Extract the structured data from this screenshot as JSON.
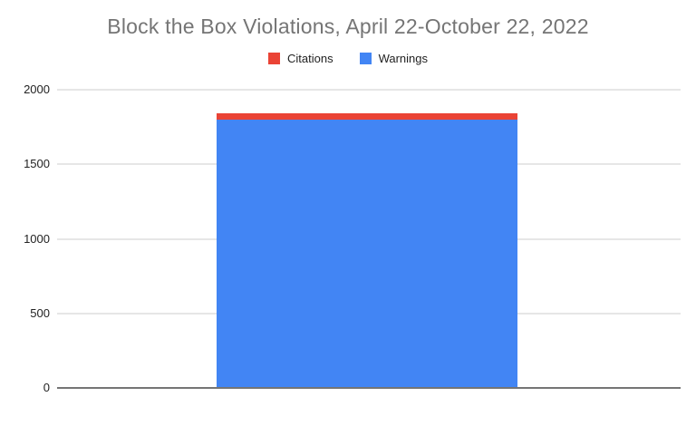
{
  "chart_data": {
    "type": "bar",
    "stacked": true,
    "title": "Block the Box Violations, April 22-October 22, 2022",
    "categories": [
      ""
    ],
    "series": [
      {
        "name": "Citations",
        "color": "#ea4335",
        "values": [
          40
        ]
      },
      {
        "name": "Warnings",
        "color": "#4285f4",
        "values": [
          1800
        ]
      }
    ],
    "xlabel": "",
    "ylabel": "",
    "ylim": [
      0,
      2000
    ],
    "yticks": [
      0,
      500,
      1000,
      1500,
      2000
    ],
    "grid": true,
    "legend_position": "top",
    "colors": {
      "title_text": "#757575",
      "tick_text": "#222222",
      "legend_text": "#222222",
      "gridline": "#e6e6e6",
      "axis_line": "#757575",
      "background": "#ffffff"
    }
  }
}
